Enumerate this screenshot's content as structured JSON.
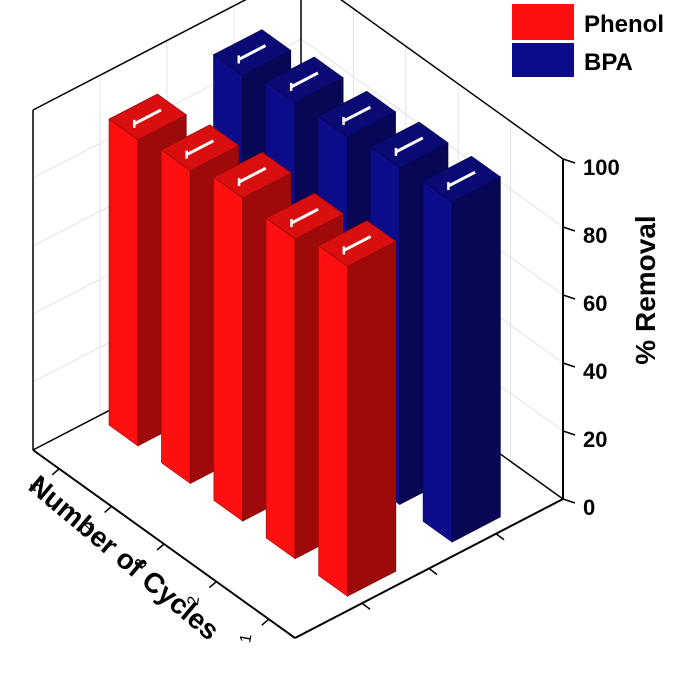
{
  "chart_data": {
    "type": "bar",
    "subtype": "3d-grouped",
    "categories": [
      "1",
      "2",
      "3",
      "4",
      "5"
    ],
    "xlabel": "Number of Cycles",
    "ylabel": "",
    "zlabel": "% Removal",
    "zlim": [
      0,
      100
    ],
    "z_ticks": [
      "0",
      "20",
      "40",
      "60",
      "80",
      "100"
    ],
    "legend_position": "top-right",
    "series": [
      {
        "name": "Phenol",
        "color": "#ff1010",
        "values": [
          97,
          94,
          95,
          92,
          90
        ],
        "error_bars": true
      },
      {
        "name": "BPA",
        "color": "#0c0c8a",
        "values": [
          100,
          99,
          97,
          96,
          93
        ],
        "error_bars": true
      }
    ]
  }
}
